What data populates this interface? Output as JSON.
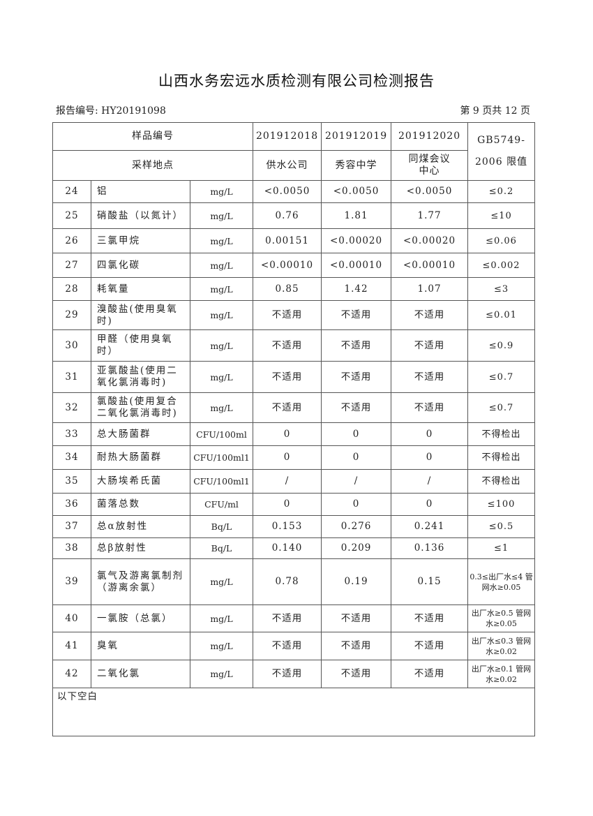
{
  "title": "山西水务宏远水质检测有限公司检测报告",
  "report_no": "报告编号: HY20191098",
  "page_info": "第 9 页共 12 页",
  "header": {
    "sample_no_label": "样品编号",
    "location_label": "采样地点",
    "limit_label_1": "GB5749-",
    "limit_label_2": "2006 限值",
    "samples": [
      {
        "no": "201912018",
        "location": "供水公司"
      },
      {
        "no": "201912019",
        "location": "秀容中学"
      },
      {
        "no": "201912020",
        "location": "同煤会议中心"
      }
    ]
  },
  "rows": [
    {
      "no": "24",
      "name": "铝",
      "unit": "mg/L",
      "v": [
        "<0.0050",
        "<0.0050",
        "<0.0050"
      ],
      "limit": "≤0.2"
    },
    {
      "no": "25",
      "name": "硝酸盐（以氮计）",
      "unit": "mg/L",
      "v": [
        "0.76",
        "1.81",
        "1.77"
      ],
      "limit": "≤10"
    },
    {
      "no": "26",
      "name": "三氯甲烷",
      "unit": "mg/L",
      "v": [
        "0.00151",
        "<0.00020",
        "<0.00020"
      ],
      "limit": "≤0.06"
    },
    {
      "no": "27",
      "name": "四氯化碳",
      "unit": "mg/L",
      "v": [
        "<0.00010",
        "<0.00010",
        "<0.00010"
      ],
      "limit": "≤0.002"
    },
    {
      "no": "28",
      "name": "耗氧量",
      "unit": "mg/L",
      "v": [
        "0.85",
        "1.42",
        "1.07"
      ],
      "limit": "≤3"
    },
    {
      "no": "29",
      "name": "溴酸盐(使用臭氧时)",
      "unit": "mg/L",
      "v": [
        "不适用",
        "不适用",
        "不适用"
      ],
      "limit": "≤0.01"
    },
    {
      "no": "30",
      "name": "甲醛（使用臭氧时）",
      "unit": "mg/L",
      "v": [
        "不适用",
        "不适用",
        "不适用"
      ],
      "limit": "≤0.9"
    },
    {
      "no": "31",
      "name": "亚氯酸盐(使用二氧化氯消毒时)",
      "unit": "mg/L",
      "v": [
        "不适用",
        "不适用",
        "不适用"
      ],
      "limit": "≤0.7"
    },
    {
      "no": "32",
      "name": "氯酸盐(使用复合二氧化氯消毒时)",
      "unit": "mg/L",
      "v": [
        "不适用",
        "不适用",
        "不适用"
      ],
      "limit": "≤0.7"
    },
    {
      "no": "33",
      "name": "总大肠菌群",
      "unit": "CFU/100ml",
      "v": [
        "0",
        "0",
        "0"
      ],
      "limit": "不得检出"
    },
    {
      "no": "34",
      "name": "耐热大肠菌群",
      "unit": "CFU/100ml1",
      "v": [
        "0",
        "0",
        "0"
      ],
      "limit": "不得检出"
    },
    {
      "no": "35",
      "name": "大肠埃希氏菌",
      "unit": "CFU/100ml1",
      "v": [
        "/",
        "/",
        "/"
      ],
      "limit": "不得检出"
    },
    {
      "no": "36",
      "name": "菌落总数",
      "unit": "CFU/ml",
      "v": [
        "0",
        "0",
        "0"
      ],
      "limit": "≤100"
    },
    {
      "no": "37",
      "name": "总α放射性",
      "unit": "Bq/L",
      "v": [
        "0.153",
        "0.276",
        "0.241"
      ],
      "limit": "≤0.5"
    },
    {
      "no": "38",
      "name": "总β放射性",
      "unit": "Bq/L",
      "v": [
        "0.140",
        "0.209",
        "0.136"
      ],
      "limit": "≤1"
    },
    {
      "no": "39",
      "name": "氯气及游离氯制剂（游离余氯）",
      "unit": "mg/L",
      "v": [
        "0.78",
        "0.19",
        "0.15"
      ],
      "limit": "0.3≤出厂水≤4 管网水≥0.05"
    },
    {
      "no": "40",
      "name": "一氯胺（总氯）",
      "unit": "mg/L",
      "v": [
        "不适用",
        "不适用",
        "不适用"
      ],
      "limit": "出厂水≥0.5 管网水≥0.05"
    },
    {
      "no": "41",
      "name": "臭氧",
      "unit": "mg/L",
      "v": [
        "不适用",
        "不适用",
        "不适用"
      ],
      "limit": "出厂水≤0.3 管网水≥0.02"
    },
    {
      "no": "42",
      "name": "二氧化氯",
      "unit": "mg/L",
      "v": [
        "不适用",
        "不适用",
        "不适用"
      ],
      "limit": "出厂水≥0.1 管网水≥0.02"
    }
  ],
  "footer_note": "以下空白"
}
